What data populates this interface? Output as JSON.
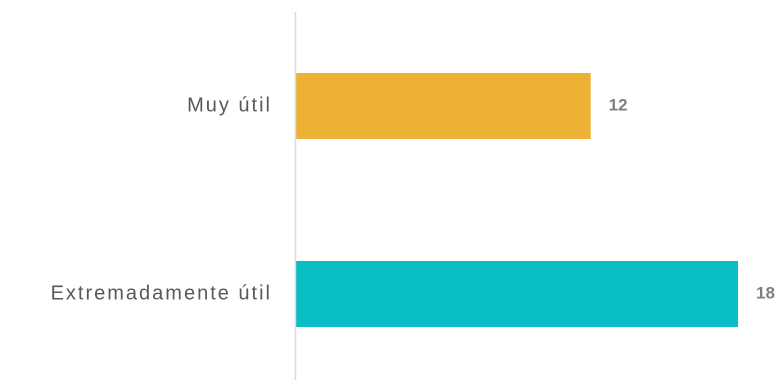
{
  "chart_data": {
    "type": "bar",
    "orientation": "horizontal",
    "categories": [
      "Muy útil",
      "Extremadamente útil"
    ],
    "values": [
      12,
      18
    ],
    "colors": [
      "#EDB135",
      "#08BDC4"
    ],
    "value_label_color": "#7F7F7F",
    "category_label_color": "#595959",
    "axis_line_color": "#D9D9D9",
    "grid": false,
    "legend": "none",
    "xlim": [
      0,
      18
    ]
  }
}
